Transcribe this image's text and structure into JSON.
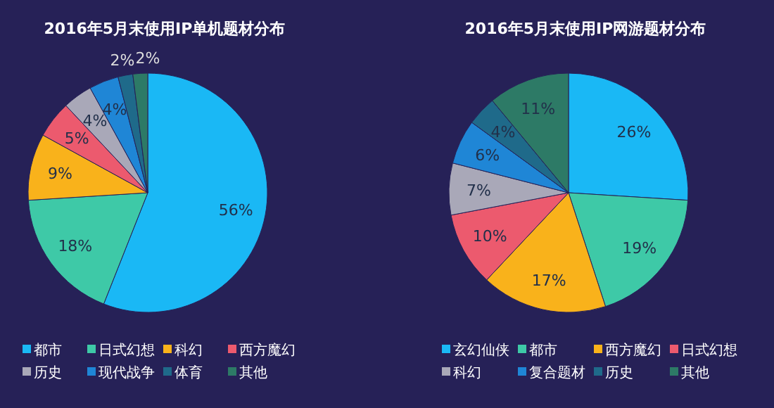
{
  "chart_data": [
    {
      "type": "pie",
      "title": "2016年5月末使用IP单机题材分布",
      "categories": [
        "都市",
        "日式幻想",
        "科幻",
        "西方魔幻",
        "历史",
        "现代战争",
        "体育",
        "其他"
      ],
      "values": [
        56,
        18,
        9,
        5,
        4,
        4,
        2,
        2
      ],
      "value_labels": [
        "56%",
        "18%",
        "9%",
        "5%",
        "4%",
        "4%",
        "2%",
        "2%"
      ],
      "colors": [
        "#1ab8f5",
        "#3ec9a7",
        "#f9b21b",
        "#ec5a6e",
        "#a9a8b8",
        "#1f86d6",
        "#1f6a8a",
        "#2d7a66"
      ],
      "legend": "bottom"
    },
    {
      "type": "pie",
      "title": "2016年5月末使用IP网游题材分布",
      "categories": [
        "玄幻仙侠",
        "都市",
        "西方魔幻",
        "日式幻想",
        "科幻",
        "复合题材",
        "历史",
        "其他"
      ],
      "values": [
        26,
        19,
        17,
        10,
        7,
        6,
        4,
        11
      ],
      "value_labels": [
        "26%",
        "19%",
        "17%",
        "10%",
        "7%",
        "6%",
        "4%",
        "11%"
      ],
      "colors": [
        "#1ab8f5",
        "#3ec9a7",
        "#f9b21b",
        "#ec5a6e",
        "#a9a8b8",
        "#1f86d6",
        "#1f6a8a",
        "#2d7a66"
      ],
      "legend": "bottom"
    }
  ]
}
